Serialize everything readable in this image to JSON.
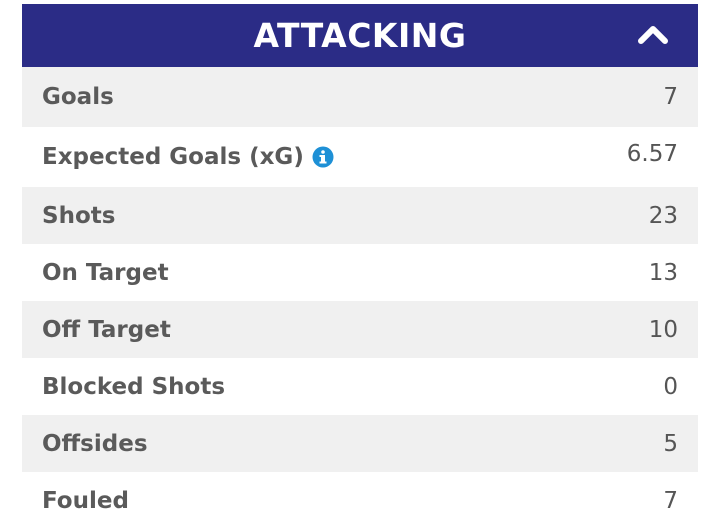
{
  "section": {
    "title": "ATTACKING",
    "header_color": "#2b2c86",
    "collapse_icon": "chevron-up-icon",
    "info_icon": "info-circle-icon",
    "info_icon_color": "#1e90d6"
  },
  "stats": [
    {
      "label": "Goals",
      "value": "7"
    },
    {
      "label": "Expected Goals (xG)",
      "value": "6.57"
    },
    {
      "label": "Shots",
      "value": "23"
    },
    {
      "label": "On Target",
      "value": "13"
    },
    {
      "label": "Off Target",
      "value": "10"
    },
    {
      "label": "Blocked Shots",
      "value": "0"
    },
    {
      "label": "Offsides",
      "value": "5"
    },
    {
      "label": "Fouled",
      "value": "7"
    }
  ]
}
